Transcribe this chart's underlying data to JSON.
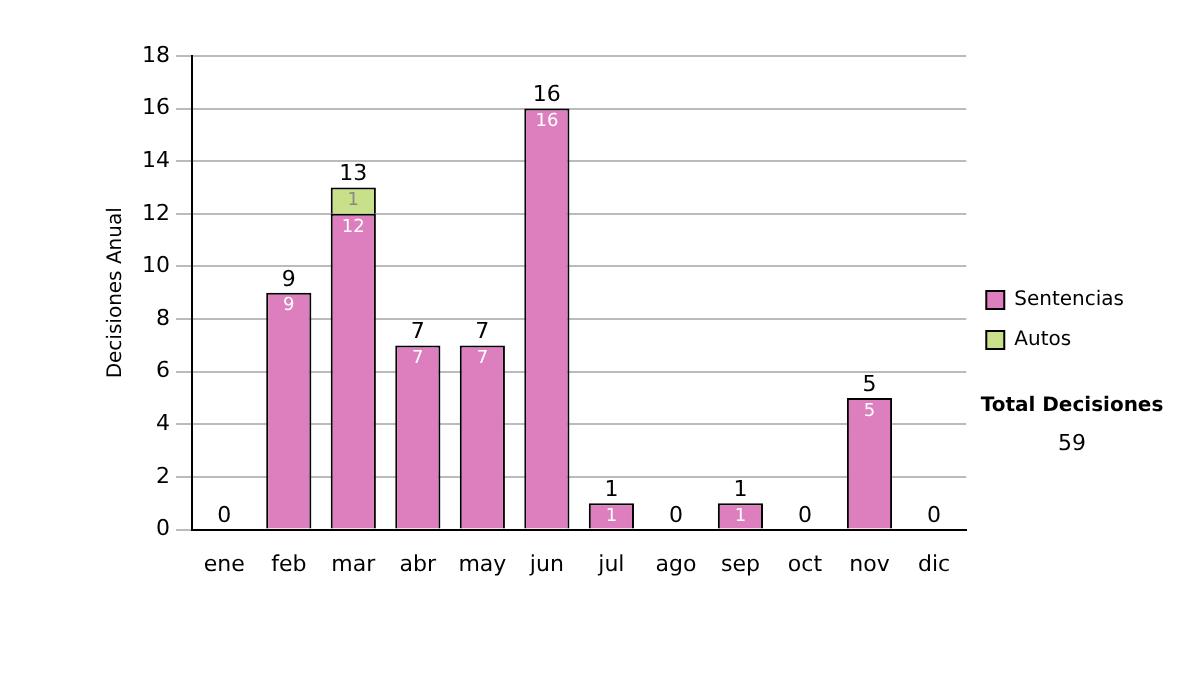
{
  "chart_data": {
    "type": "bar",
    "stacked": true,
    "ylabel": "Decisiones Anual",
    "categories": [
      "ene",
      "feb",
      "mar",
      "abr",
      "may",
      "jun",
      "jul",
      "ago",
      "sep",
      "oct",
      "nov",
      "dic"
    ],
    "series": [
      {
        "name": "Sentencias",
        "color": "#dd7fbf",
        "values": [
          0,
          9,
          12,
          7,
          7,
          16,
          1,
          0,
          1,
          0,
          5,
          0
        ],
        "value_labels": [
          null,
          "9",
          "12",
          "7",
          "7",
          "16",
          "1",
          null,
          "1",
          null,
          "5",
          null
        ]
      },
      {
        "name": "Autos",
        "color": "#c9e08a",
        "values": [
          0,
          0,
          1,
          0,
          0,
          0,
          0,
          0,
          0,
          0,
          0,
          0
        ],
        "value_labels": [
          null,
          null,
          "1",
          null,
          null,
          null,
          null,
          null,
          null,
          null,
          null,
          null
        ]
      }
    ],
    "totals": [
      "0",
      "9",
      "13",
      "7",
      "7",
      "16",
      "1",
      "0",
      "1",
      "0",
      "5",
      "0"
    ],
    "ylim": [
      0,
      18
    ],
    "yticks": [
      0,
      2,
      4,
      6,
      8,
      10,
      12,
      14,
      16,
      18
    ],
    "grid": "y",
    "legend": "right",
    "annotations": [
      "Total Decisiones",
      "59"
    ]
  }
}
